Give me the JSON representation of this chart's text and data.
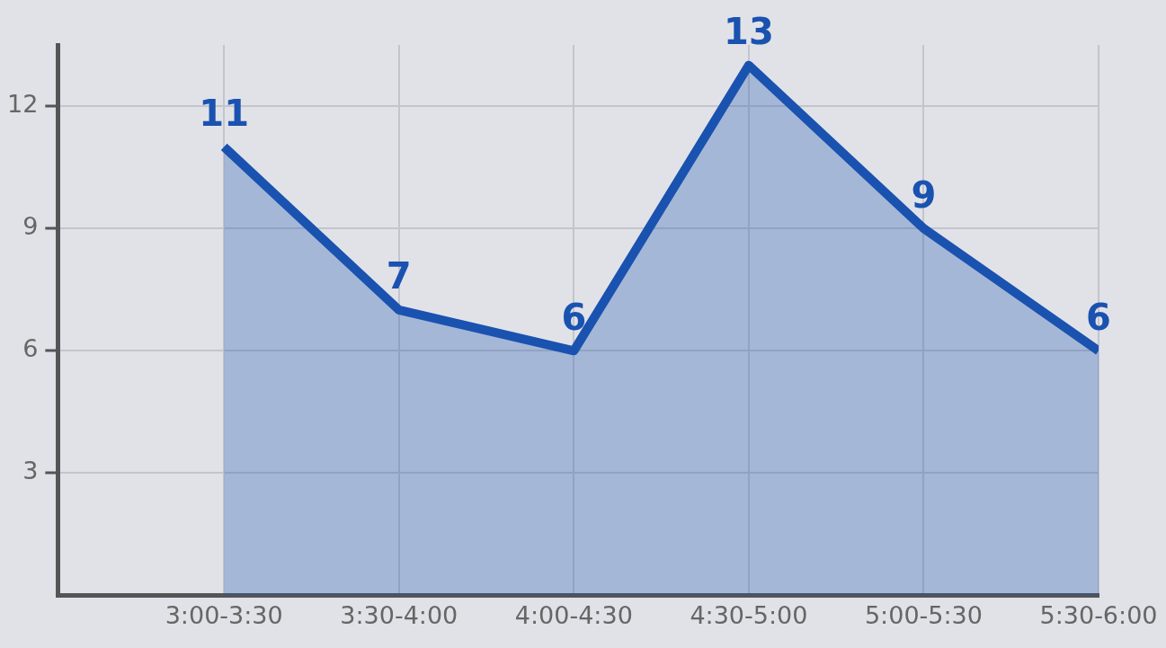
{
  "chart_data": {
    "type": "area",
    "categories": [
      "3:00-3:30",
      "3:30-4:00",
      "4:00-4:30",
      "4:30-5:00",
      "5:00-5:30",
      "5:30-6:00"
    ],
    "series": [
      {
        "color": "#1a52b0",
        "values": [
          11,
          7,
          6,
          13,
          9,
          6
        ]
      }
    ],
    "ylim": [
      0,
      13.5
    ],
    "yticks": [
      3,
      6,
      9,
      12
    ],
    "grid": true,
    "data_labels": true,
    "legend": false,
    "marker": "none"
  }
}
